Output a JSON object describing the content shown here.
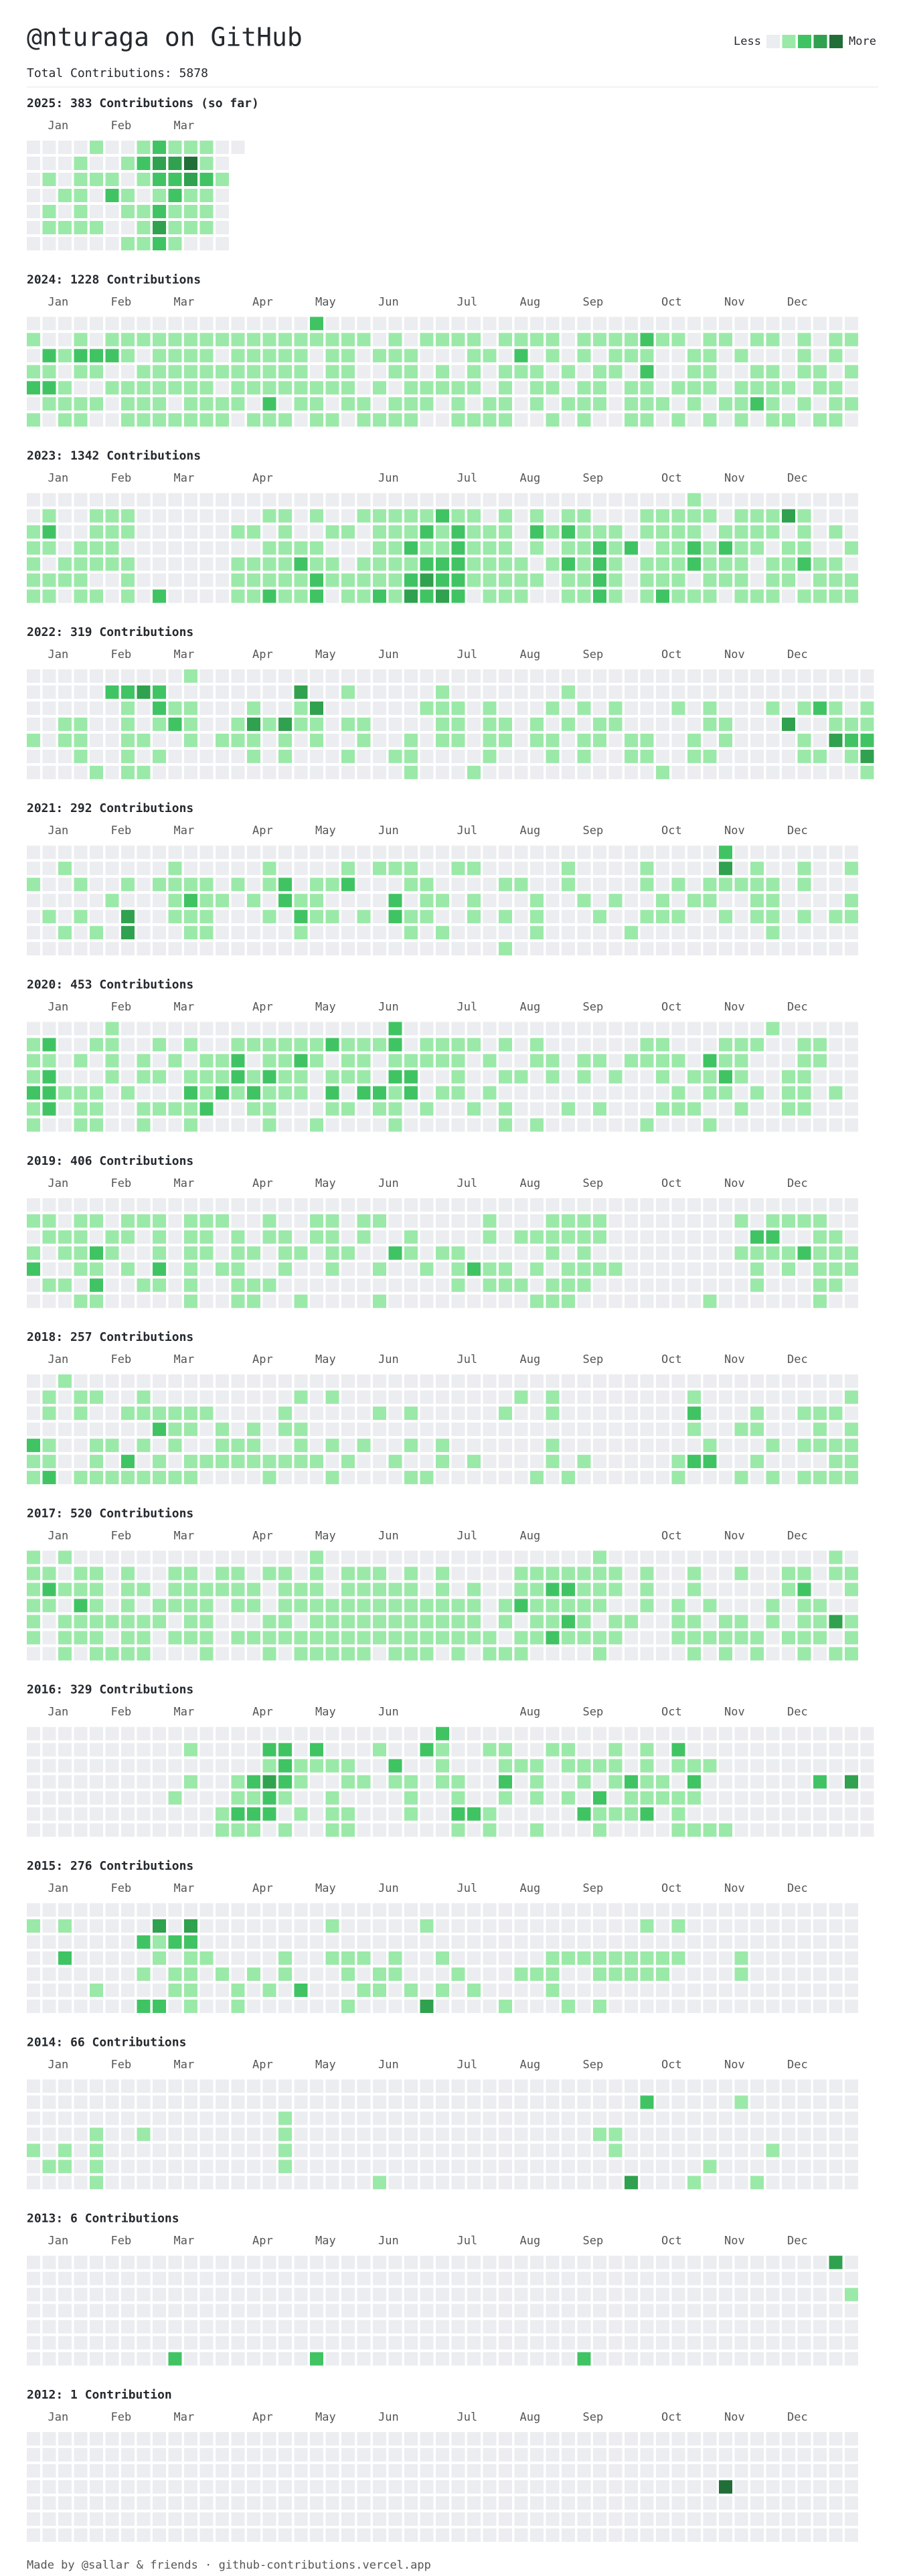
{
  "header": {
    "title": "@nturaga on GitHub",
    "total": "Total Contributions: 5878"
  },
  "legend": {
    "less": "Less",
    "more": "More"
  },
  "levels": [
    "#ebedf0",
    "#9be9a8",
    "#40c463",
    "#30a14e",
    "#216e39"
  ],
  "years": [
    {
      "title": "2025: 383 Contributions (so far)",
      "months": [
        null,
        "Jan",
        null,
        null,
        null,
        "Feb",
        null,
        null,
        null,
        "Mar",
        null,
        null,
        null,
        null
      ],
      "grid": [
        "00001001211100",
        "0001001233410.",
        "0101110122321.",
        "0011021012110.",
        "0101001121110.",
        "0111100131110.",
        "0000001121000."
      ]
    },
    {
      "title": "2024: 1228 Contributions",
      "months": [
        null,
        "Jan",
        null,
        null,
        null,
        "Feb",
        null,
        null,
        null,
        "Mar",
        null,
        null,
        null,
        null,
        "Apr",
        null,
        null,
        null,
        "May",
        null,
        null,
        null,
        "Jun",
        null,
        null,
        null,
        null,
        "Jul",
        null,
        null,
        null,
        "Aug",
        null,
        null,
        null,
        "Sep",
        null,
        null,
        null,
        null,
        "Oct",
        null,
        null,
        null,
        "Nov",
        null,
        null,
        null,
        "Dec",
        null,
        null,
        null,
        null
      ],
      "grid": [
        "00000000000000000020000000000000000000000000000000000",
        "10010111111111111111110101111011110111121101101101011",
        "02122210111101111101101110001102010101110011010001010",
        "11011001111111111101100110101011101011020011001101101",
        "22100111111101111111101011111010110110110111011110110",
        "01111011101111020110110111010110101110111010112101011",
        "10110011111110111011011110011110010100110101010110110"
      ]
    },
    {
      "title": "2023: 1342 Contributions",
      "months": [
        null,
        "Jan",
        null,
        null,
        null,
        "Feb",
        null,
        null,
        null,
        "Mar",
        null,
        null,
        null,
        null,
        "Apr",
        null,
        null,
        null,
        null,
        null,
        null,
        null,
        "Jun",
        null,
        null,
        null,
        null,
        "Jul",
        null,
        null,
        null,
        "Aug",
        null,
        null,
        null,
        "Sep",
        null,
        null,
        null,
        null,
        "Oct",
        null,
        null,
        null,
        "Nov",
        null,
        null,
        null,
        "Dec",
        null,
        null,
        null,
        null
      ],
      "grid": [
        "00000000000000000000000000000000000000000010000000000",
        "01001110000000011010011111211010101100011111011131000",
        "12001110000001101001101112121110212111011110111101010",
        "11011100000000011110001121121110101121201121211011001",
        "10111110000001111211011112221111012121011121110112110",
        "11110010000001111121111123221111101121011101110110111",
        "11011010200001121120112132320111001121012111011101111"
      ]
    },
    {
      "title": "2022: 319 Contributions",
      "months": [
        null,
        "Jan",
        null,
        null,
        null,
        "Feb",
        null,
        null,
        null,
        "Mar",
        null,
        null,
        null,
        null,
        "Apr",
        null,
        null,
        null,
        "May",
        null,
        null,
        null,
        "Jun",
        null,
        null,
        null,
        null,
        "Jul",
        null,
        null,
        null,
        "Aug",
        null,
        null,
        null,
        "Sep",
        null,
        null,
        null,
        null,
        "Oct",
        null,
        null,
        null,
        "Nov",
        null,
        null,
        null,
        "Dec",
        null,
        null,
        null,
        null,
        null
      ],
      "grid": [
        "000000000010000000000000000000000000000000000000000000",
        "000002232000000003001000001000000010000000000000000000",
        "000000102110001001300000011101000101010001010001012101",
        "001100101210013131101100001101101010110000011000300111",
        "101100110010111010100100101101101101101100101000010322",
        "000100101000001010001001100001000101001100110000011013",
        "000010110000000000000000100010000000000010000000000001"
      ]
    },
    {
      "title": "2021: 292 Contributions",
      "months": [
        null,
        "Jan",
        null,
        null,
        null,
        "Feb",
        null,
        null,
        null,
        "Mar",
        null,
        null,
        null,
        null,
        "Apr",
        null,
        null,
        null,
        "May",
        null,
        null,
        null,
        "Jun",
        null,
        null,
        null,
        null,
        "Jul",
        null,
        null,
        null,
        "Aug",
        null,
        null,
        null,
        "Sep",
        null,
        null,
        null,
        null,
        "Oct",
        null,
        null,
        null,
        "Nov",
        null,
        null,
        null,
        "Dec",
        null,
        null,
        null,
        null
      ],
      "grid": [
        "00000000000000000000000000000000000000000000200000000",
        "00100000010000010000101110011000001000010000301001001",
        "10010010111101012011200011000011001000010101111101000",
        "00000100012110102110000201101000100101001011001100001",
        "01010030011100010211010211001010100010011100101101011",
        "00101030001100000100000010100000100000100000000100000",
        "00000000000000000000000000000010000000000000000000000"
      ]
    },
    {
      "title": "2020: 453 Contributions",
      "months": [
        null,
        "Jan",
        null,
        null,
        null,
        "Feb",
        null,
        null,
        null,
        "Mar",
        null,
        null,
        null,
        null,
        "Apr",
        null,
        null,
        null,
        "May",
        null,
        null,
        null,
        "Jun",
        null,
        null,
        null,
        null,
        "Jul",
        null,
        null,
        null,
        "Aug",
        null,
        null,
        null,
        "Sep",
        null,
        null,
        null,
        null,
        "Oct",
        null,
        null,
        null,
        "Nov",
        null,
        null,
        null,
        "Dec",
        null,
        null,
        null,
        null
      ],
      "grid": [
        "00000100000000000000000200000000000000000000000100000",
        "12001100101001111112111201111010100000011000111001100",
        "11010101010112011210110111110100110110111102110001100",
        "12000101101112121101110220010011010101001011210011000",
        "22111010002121211102022120110100000000000101101011010",
        "12011001111200110001101101001010001010001110010011000",
        "10011001001000010010000100000010100000010001000000000"
      ]
    },
    {
      "title": "2019: 406 Contributions",
      "months": [
        null,
        "Jan",
        null,
        null,
        null,
        "Feb",
        null,
        null,
        null,
        "Mar",
        null,
        null,
        null,
        null,
        "Apr",
        null,
        null,
        null,
        "May",
        null,
        null,
        null,
        "Jun",
        null,
        null,
        null,
        null,
        "Jul",
        null,
        null,
        null,
        "Aug",
        null,
        null,
        null,
        "Sep",
        null,
        null,
        null,
        null,
        "Oct",
        null,
        null,
        null,
        "Nov",
        null,
        null,
        null,
        "Dec",
        null,
        null,
        null,
        null
      ],
      "grid": [
        "00000000000000000000000000000000000000000000000000000",
        "11011011101110010011011000000100011110000000010111100",
        "01110110101101011011010010000101111110000000002200110",
        "10112100101101101101100210110000010100000000011112111",
        "20011010201011001001001001012110101111000000001010111",
        "01102001101001110000000000010111011100000000001000110",
        "00011000001001100100001000000000111000000001000000100"
      ]
    },
    {
      "title": "2018: 257 Contributions",
      "months": [
        null,
        "Jan",
        null,
        null,
        null,
        "Feb",
        null,
        null,
        null,
        "Mar",
        null,
        null,
        null,
        null,
        "Apr",
        null,
        null,
        null,
        "May",
        null,
        null,
        null,
        "Jun",
        null,
        null,
        null,
        null,
        "Jul",
        null,
        null,
        null,
        "Aug",
        null,
        null,
        null,
        "Sep",
        null,
        null,
        null,
        null,
        "Oct",
        null,
        null,
        null,
        "Nov",
        null,
        null,
        null,
        "Dec",
        null,
        null,
        null,
        null
      ],
      "grid": [
        "00100000000000000000000000000000000000000000000000000",
        "01011001000000000101000000000001010000000010000000001",
        "01010011111100001000001010000010010000000020001001110",
        "00000000211010101100000000000000000000000010011000101",
        "21001101010011100101010010100000010000000001000101111",
        "11001020101111111110100100101000010100000122001000011",
        "12011111111000010001000011000000101000000100010101111"
      ]
    },
    {
      "title": "2017: 520 Contributions",
      "months": [
        null,
        "Jan",
        null,
        null,
        null,
        "Feb",
        null,
        null,
        null,
        "Mar",
        null,
        null,
        null,
        null,
        "Apr",
        null,
        null,
        null,
        "May",
        null,
        null,
        null,
        "Jun",
        null,
        null,
        null,
        null,
        "Jul",
        null,
        null,
        null,
        "Aug",
        null,
        null,
        null,
        null,
        null,
        null,
        null,
        null,
        "Oct",
        null,
        null,
        null,
        "Nov",
        null,
        null,
        null,
        "Dec",
        null,
        null,
        null,
        null
      ],
      "grid": [
        "10100000000000000010000000000000000010000000000000010",
        "11011010011011011010111010100001111111010010010011011",
        "12111011011111101110111110101001122111010010000012001",
        "11021010111101101111111111111012111110010101000101100",
        "10111111101100011011111111111010112101100110110101131",
        "10111011011101111111111111111101121111000111111011101",
        "00101111000100010111110111010111000010000010101001011"
      ]
    },
    {
      "title": "2016: 329 Contributions",
      "months": [
        null,
        "Jan",
        null,
        null,
        null,
        "Feb",
        null,
        null,
        null,
        "Mar",
        null,
        null,
        null,
        null,
        "Apr",
        null,
        null,
        null,
        "May",
        null,
        null,
        null,
        "Jun",
        null,
        null,
        null,
        null,
        null,
        null,
        null,
        null,
        "Aug",
        null,
        null,
        null,
        "Sep",
        null,
        null,
        null,
        null,
        "Oct",
        null,
        null,
        null,
        "Nov",
        null,
        null,
        null,
        "Dec",
        null,
        null,
        null,
        null,
        null
      ],
      "grid": [
        "000000000000000000000000002000000000000000000000000000",
        "000000000010000220200010021001100110010102000000000000",
        "000000000000000121111002001000111011110101110000000000",
        "000000000010012321001101101100201001012110200000002030",
        "000000000100011210010000100100101010201111100000000000",
        "000000000000122201011000100221000002111201000000000000",
        "000000000000111010011000000101001000100001111000000000"
      ]
    },
    {
      "title": "2015: 276 Contributions",
      "months": [
        null,
        "Jan",
        null,
        null,
        null,
        "Feb",
        null,
        null,
        null,
        "Mar",
        null,
        null,
        null,
        null,
        "Apr",
        null,
        null,
        null,
        "May",
        null,
        null,
        null,
        "Jun",
        null,
        null,
        null,
        null,
        "Jul",
        null,
        null,
        null,
        "Aug",
        null,
        null,
        null,
        "Sep",
        null,
        null,
        null,
        null,
        "Oct",
        null,
        null,
        null,
        "Nov",
        null,
        null,
        null,
        "Dec",
        null,
        null,
        null,
        null
      ],
      "grid": [
        "00000000000000000000000000000000000000000000000000000",
        "10100000303000000001000001000000000000010100000000000",
        "00000002122000000000000000000000000000000000000000000",
        "00200000101100001001110100100000011111111100010000000",
        "00000001011010101000101100010001110011111000010000000",
        "00001000011001010200011010101000010000000000000000000",
        "00000002201001000000100003000010001010000000000000000"
      ]
    },
    {
      "title": "2014: 66 Contributions",
      "months": [
        null,
        "Jan",
        null,
        null,
        null,
        "Feb",
        null,
        null,
        null,
        "Mar",
        null,
        null,
        null,
        null,
        "Apr",
        null,
        null,
        null,
        "May",
        null,
        null,
        null,
        "Jun",
        null,
        null,
        null,
        null,
        "Jul",
        null,
        null,
        null,
        "Aug",
        null,
        null,
        null,
        "Sep",
        null,
        null,
        null,
        null,
        "Oct",
        null,
        null,
        null,
        "Nov",
        null,
        null,
        null,
        "Dec",
        null,
        null,
        null,
        null
      ],
      "grid": [
        "00000000000000000000000000000000000000000000000000000",
        "00000000000000000000000000000000000000020000010000000",
        "00000000000000001000000000000000000000000000000000000",
        "00001001000000001000000000000000000011000000000000000",
        "10101000000000001000000000000000000001000000000100000",
        "01101000000000001000000000000000000000000001000000000",
        "00001000000000000000001000000000000000300010001000000"
      ]
    },
    {
      "title": "2013: 6 Contributions",
      "months": [
        null,
        "Jan",
        null,
        null,
        null,
        "Feb",
        null,
        null,
        null,
        "Mar",
        null,
        null,
        null,
        null,
        "Apr",
        null,
        null,
        null,
        "May",
        null,
        null,
        null,
        "Jun",
        null,
        null,
        null,
        null,
        "Jul",
        null,
        null,
        null,
        "Aug",
        null,
        null,
        null,
        "Sep",
        null,
        null,
        null,
        null,
        "Oct",
        null,
        null,
        null,
        "Nov",
        null,
        null,
        null,
        "Dec",
        null,
        null,
        null,
        null
      ],
      "grid": [
        "00000000000000000000000000000000000000000000000000030",
        "00000000000000000000000000000000000000000000000000000",
        "00000000000000000000000000000000000000000000000000001",
        "00000000000000000000000000000000000000000000000000000",
        "00000000000000000000000000000000000000000000000000000",
        "00000000000000000000000000000000000000000000000000000",
        "00000000020000000020000000000000000200000000000000000"
      ]
    },
    {
      "title": "2012: 1 Contribution",
      "months": [
        null,
        "Jan",
        null,
        null,
        null,
        "Feb",
        null,
        null,
        null,
        "Mar",
        null,
        null,
        null,
        null,
        "Apr",
        null,
        null,
        null,
        "May",
        null,
        null,
        null,
        "Jun",
        null,
        null,
        null,
        null,
        "Jul",
        null,
        null,
        null,
        "Aug",
        null,
        null,
        null,
        "Sep",
        null,
        null,
        null,
        null,
        "Oct",
        null,
        null,
        null,
        "Nov",
        null,
        null,
        null,
        "Dec",
        null,
        null,
        null,
        null
      ],
      "grid": [
        "00000000000000000000000000000000000000000000000000000",
        "00000000000000000000000000000000000000000000000000000",
        "00000000000000000000000000000000000000000000000000000",
        "00000000000000000000000000000000000000000000400000000",
        "00000000000000000000000000000000000000000000000000000",
        "00000000000000000000000000000000000000000000000000000",
        "00000000000000000000000000000000000000000000000000000"
      ]
    }
  ],
  "footer": "Made by @sallar & friends · github-contributions.vercel.app"
}
